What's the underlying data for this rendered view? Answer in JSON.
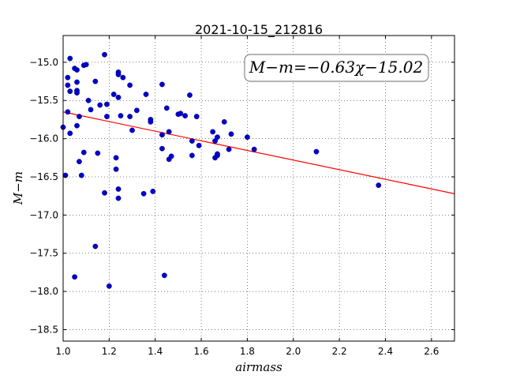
{
  "chart_data": {
    "type": "scatter",
    "title": "2021-10-15_212816",
    "xlabel": "airmass",
    "ylabel": "M−m",
    "xlim": [
      1.0,
      2.7
    ],
    "ylim": [
      -18.65,
      -14.65
    ],
    "y_inverted": true,
    "grid": true,
    "x_ticks": [
      "1.0",
      "1.2",
      "1.4",
      "1.6",
      "1.8",
      "2.0",
      "2.2",
      "2.4",
      "2.6"
    ],
    "y_ticks": [
      "−15.0",
      "−15.5",
      "−16.0",
      "−16.5",
      "−17.0",
      "−17.5",
      "−18.0",
      "−18.5"
    ],
    "annotation": "M−m=−0.63χ−15.02",
    "fit": {
      "slope": -0.63,
      "intercept": -15.02,
      "color": "#ff0000"
    },
    "point_color": "#0000cc",
    "points": [
      [
        1.0,
        -15.85
      ],
      [
        1.01,
        -16.48
      ],
      [
        1.02,
        -15.65
      ],
      [
        1.02,
        -15.3
      ],
      [
        1.02,
        -15.2
      ],
      [
        1.03,
        -14.95
      ],
      [
        1.03,
        -15.38
      ],
      [
        1.03,
        -15.93
      ],
      [
        1.05,
        -15.08
      ],
      [
        1.06,
        -15.1
      ],
      [
        1.06,
        -15.26
      ],
      [
        1.06,
        -15.37
      ],
      [
        1.06,
        -15.4
      ],
      [
        1.06,
        -15.83
      ],
      [
        1.05,
        -17.81
      ],
      [
        1.07,
        -15.71
      ],
      [
        1.07,
        -16.3
      ],
      [
        1.08,
        -16.48
      ],
      [
        1.09,
        -16.18
      ],
      [
        1.09,
        -15.04
      ],
      [
        1.1,
        -15.03
      ],
      [
        1.11,
        -15.5
      ],
      [
        1.12,
        -15.62
      ],
      [
        1.14,
        -15.25
      ],
      [
        1.14,
        -17.41
      ],
      [
        1.15,
        -16.19
      ],
      [
        1.16,
        -15.56
      ],
      [
        1.18,
        -14.9
      ],
      [
        1.18,
        -16.71
      ],
      [
        1.19,
        -15.55
      ],
      [
        1.19,
        -15.71
      ],
      [
        1.2,
        -17.93
      ],
      [
        1.22,
        -15.42
      ],
      [
        1.23,
        -16.25
      ],
      [
        1.23,
        -16.4
      ],
      [
        1.24,
        -15.13
      ],
      [
        1.24,
        -15.16
      ],
      [
        1.24,
        -15.46
      ],
      [
        1.24,
        -16.66
      ],
      [
        1.24,
        -16.78
      ],
      [
        1.25,
        -15.7
      ],
      [
        1.26,
        -15.2
      ],
      [
        1.29,
        -15.3
      ],
      [
        1.29,
        -15.71
      ],
      [
        1.3,
        -15.89
      ],
      [
        1.32,
        -15.63
      ],
      [
        1.35,
        -16.72
      ],
      [
        1.36,
        -15.42
      ],
      [
        1.38,
        -15.75
      ],
      [
        1.38,
        -15.78
      ],
      [
        1.39,
        -16.69
      ],
      [
        1.43,
        -15.29
      ],
      [
        1.43,
        -15.95
      ],
      [
        1.43,
        -16.13
      ],
      [
        1.44,
        -17.79
      ],
      [
        1.45,
        -15.6
      ],
      [
        1.46,
        -15.91
      ],
      [
        1.46,
        -16.27
      ],
      [
        1.47,
        -16.23
      ],
      [
        1.5,
        -15.68
      ],
      [
        1.51,
        -15.67
      ],
      [
        1.53,
        -15.7
      ],
      [
        1.55,
        -15.43
      ],
      [
        1.56,
        -16.03
      ],
      [
        1.56,
        -16.22
      ],
      [
        1.58,
        -15.71
      ],
      [
        1.59,
        -16.09
      ],
      [
        1.65,
        -15.91
      ],
      [
        1.66,
        -16.03
      ],
      [
        1.66,
        -16.25
      ],
      [
        1.67,
        -15.98
      ],
      [
        1.67,
        -16.22
      ],
      [
        1.67,
        -16.2
      ],
      [
        1.7,
        -15.78
      ],
      [
        1.72,
        -16.14
      ],
      [
        1.73,
        -15.94
      ],
      [
        1.8,
        -15.98
      ],
      [
        1.83,
        -16.14
      ],
      [
        2.1,
        -16.17
      ],
      [
        2.37,
        -16.61
      ]
    ]
  }
}
